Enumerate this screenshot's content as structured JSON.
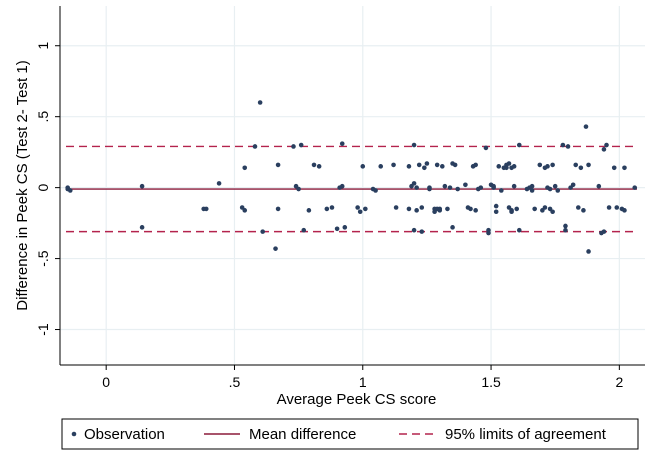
{
  "chart_data": {
    "type": "scatter",
    "xlabel": "Average Peek CS score",
    "ylabel": "Difference in Peek CS (Test 2- Test 1)",
    "xlim": [
      -0.18,
      2.1
    ],
    "ylim": [
      -1.25,
      1.28
    ],
    "x_ticks": [
      0,
      0.5,
      1,
      1.5,
      2
    ],
    "x_tick_labels": [
      "0",
      ".5",
      "1",
      "1.5",
      "2"
    ],
    "y_ticks": [
      -1,
      -0.5,
      0,
      0.5,
      1
    ],
    "y_tick_labels": [
      "-1",
      "-.5",
      "0",
      ".5",
      "1"
    ],
    "grid": true,
    "legend_position": "bottom",
    "colors": {
      "observation": "#2a3f5f",
      "mean": "#8b1a3a",
      "limits": "#b4234d",
      "grid": "#e8eff2"
    },
    "mean_difference": -0.01,
    "limits_of_agreement": [
      -0.31,
      0.29
    ],
    "series": [
      {
        "name": "Observation",
        "points": [
          [
            -0.15,
            -0.01
          ],
          [
            -0.15,
            0.0
          ],
          [
            -0.14,
            -0.02
          ],
          [
            0.14,
            0.01
          ],
          [
            0.14,
            -0.28
          ],
          [
            0.38,
            -0.15
          ],
          [
            0.39,
            -0.15
          ],
          [
            0.44,
            0.03
          ],
          [
            0.53,
            -0.14
          ],
          [
            0.54,
            -0.16
          ],
          [
            0.54,
            0.14
          ],
          [
            0.58,
            0.29
          ],
          [
            0.6,
            0.6
          ],
          [
            0.61,
            -0.31
          ],
          [
            0.66,
            -0.43
          ],
          [
            0.67,
            0.16
          ],
          [
            0.67,
            -0.15
          ],
          [
            0.73,
            0.29
          ],
          [
            0.74,
            0.01
          ],
          [
            0.75,
            -0.01
          ],
          [
            0.76,
            0.3
          ],
          [
            0.77,
            -0.3
          ],
          [
            0.79,
            -0.16
          ],
          [
            0.81,
            0.16
          ],
          [
            0.83,
            0.15
          ],
          [
            0.86,
            -0.15
          ],
          [
            0.88,
            -0.14
          ],
          [
            0.9,
            -0.29
          ],
          [
            0.91,
            0.0
          ],
          [
            0.92,
            0.31
          ],
          [
            0.92,
            0.01
          ],
          [
            0.93,
            -0.28
          ],
          [
            0.98,
            -0.14
          ],
          [
            0.99,
            -0.17
          ],
          [
            1.0,
            0.15
          ],
          [
            1.01,
            -0.15
          ],
          [
            1.04,
            -0.01
          ],
          [
            1.05,
            -0.02
          ],
          [
            1.07,
            0.15
          ],
          [
            1.12,
            0.16
          ],
          [
            1.13,
            -0.14
          ],
          [
            1.18,
            0.15
          ],
          [
            1.18,
            -0.15
          ],
          [
            1.19,
            0.01
          ],
          [
            1.2,
            0.3
          ],
          [
            1.2,
            -0.3
          ],
          [
            1.2,
            0.03
          ],
          [
            1.21,
            -0.16
          ],
          [
            1.21,
            0.0
          ],
          [
            1.22,
            0.16
          ],
          [
            1.23,
            -0.14
          ],
          [
            1.23,
            -0.31
          ],
          [
            1.24,
            0.14
          ],
          [
            1.25,
            0.17
          ],
          [
            1.26,
            0.0
          ],
          [
            1.26,
            -0.01
          ],
          [
            1.28,
            -0.15
          ],
          [
            1.28,
            -0.17
          ],
          [
            1.29,
            -0.15
          ],
          [
            1.29,
            0.16
          ],
          [
            1.3,
            -0.15
          ],
          [
            1.3,
            -0.16
          ],
          [
            1.31,
            0.15
          ],
          [
            1.32,
            0.01
          ],
          [
            1.33,
            -0.15
          ],
          [
            1.34,
            0.0
          ],
          [
            1.35,
            0.17
          ],
          [
            1.35,
            -0.28
          ],
          [
            1.36,
            0.16
          ],
          [
            1.37,
            -0.01
          ],
          [
            1.4,
            0.02
          ],
          [
            1.41,
            -0.14
          ],
          [
            1.42,
            -0.15
          ],
          [
            1.43,
            0.15
          ],
          [
            1.44,
            -0.16
          ],
          [
            1.44,
            0.16
          ],
          [
            1.45,
            -0.01
          ],
          [
            1.46,
            0.0
          ],
          [
            1.48,
            0.28
          ],
          [
            1.49,
            -0.3
          ],
          [
            1.49,
            -0.32
          ],
          [
            1.5,
            0.02
          ],
          [
            1.51,
            0.01
          ],
          [
            1.51,
            0.0
          ],
          [
            1.52,
            -0.17
          ],
          [
            1.52,
            -0.13
          ],
          [
            1.53,
            0.15
          ],
          [
            1.54,
            -0.02
          ],
          [
            1.55,
            0.14
          ],
          [
            1.56,
            0.14
          ],
          [
            1.56,
            0.16
          ],
          [
            1.57,
            0.17
          ],
          [
            1.57,
            -0.14
          ],
          [
            1.58,
            -0.16
          ],
          [
            1.58,
            -0.17
          ],
          [
            1.58,
            0.14
          ],
          [
            1.59,
            0.15
          ],
          [
            1.59,
            0.01
          ],
          [
            1.6,
            -0.15
          ],
          [
            1.61,
            0.3
          ],
          [
            1.61,
            -0.3
          ],
          [
            1.64,
            -0.01
          ],
          [
            1.65,
            0.0
          ],
          [
            1.66,
            0.01
          ],
          [
            1.66,
            -0.02
          ],
          [
            1.67,
            -0.15
          ],
          [
            1.69,
            0.16
          ],
          [
            1.7,
            -0.16
          ],
          [
            1.71,
            0.14
          ],
          [
            1.71,
            -0.14
          ],
          [
            1.72,
            0.15
          ],
          [
            1.72,
            0.0
          ],
          [
            1.73,
            -0.01
          ],
          [
            1.73,
            -0.15
          ],
          [
            1.74,
            0.16
          ],
          [
            1.74,
            -0.17
          ],
          [
            1.75,
            0.01
          ],
          [
            1.76,
            -0.02
          ],
          [
            1.78,
            0.3
          ],
          [
            1.79,
            -0.27
          ],
          [
            1.79,
            -0.3
          ],
          [
            1.8,
            0.29
          ],
          [
            1.81,
            0.0
          ],
          [
            1.82,
            0.02
          ],
          [
            1.83,
            0.16
          ],
          [
            1.84,
            -0.14
          ],
          [
            1.85,
            0.14
          ],
          [
            1.86,
            -0.16
          ],
          [
            1.87,
            0.43
          ],
          [
            1.88,
            -0.45
          ],
          [
            1.88,
            0.16
          ],
          [
            1.92,
            0.01
          ],
          [
            1.93,
            -0.32
          ],
          [
            1.94,
            0.27
          ],
          [
            1.94,
            -0.31
          ],
          [
            1.95,
            0.3
          ],
          [
            1.96,
            -0.14
          ],
          [
            1.98,
            0.14
          ],
          [
            1.99,
            -0.14
          ],
          [
            2.01,
            -0.15
          ],
          [
            2.02,
            0.14
          ],
          [
            2.02,
            -0.16
          ],
          [
            2.06,
            0.0
          ]
        ]
      },
      {
        "name": "Mean difference",
        "style": "solid line"
      },
      {
        "name": "95% limits of agreement",
        "style": "dashed line"
      }
    ]
  }
}
